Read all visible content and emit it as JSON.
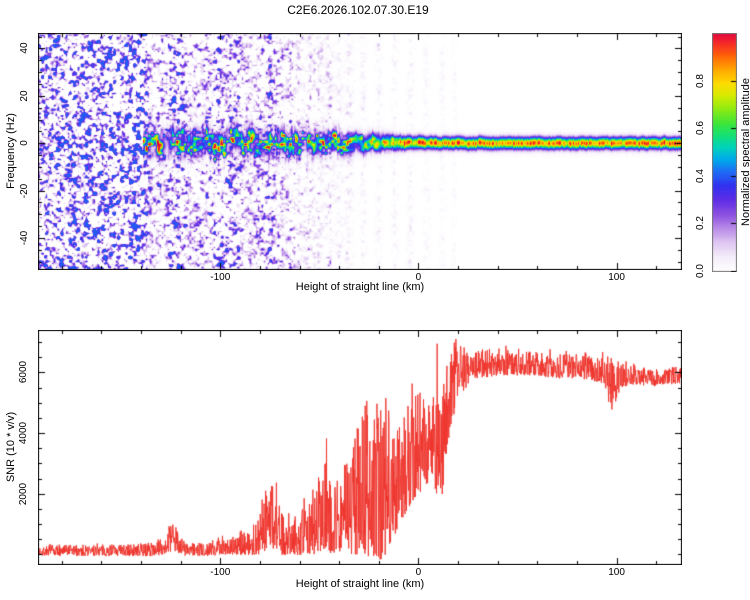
{
  "title": "C2E6.2026.102.07.30.E19",
  "colors": {
    "trace": "#ee332b",
    "axis": "#000000",
    "text": "#000000",
    "background": "#ffffff",
    "colorbar_border": "#777777"
  },
  "spectrogram_axes": {
    "xlabel": "Height of straight line (km)",
    "ylabel": "Frequency (Hz)",
    "x_range": [
      -192,
      133
    ],
    "y_range": [
      -53.5,
      46.5
    ],
    "x_tick_values": [
      -100,
      0,
      100
    ],
    "x_tick_labels": [
      "-100",
      "0",
      "100"
    ],
    "x_minor_step": 20,
    "y_tick_values": [
      -40,
      -20,
      0,
      20,
      40
    ],
    "y_tick_labels": [
      "-40",
      "-20",
      "0",
      "20",
      "40"
    ],
    "y_minor_step": 5
  },
  "colorbar": {
    "label": "Normalized spectral amplitude",
    "range": [
      0,
      1
    ],
    "tick_values": [
      0,
      0.2,
      0.4,
      0.6,
      0.8
    ],
    "tick_labels": [
      "0.0",
      "0.2",
      "0.4",
      "0.6",
      "0.8"
    ],
    "stops": [
      [
        0.0,
        "#ffffff"
      ],
      [
        0.06,
        "#f5eefa"
      ],
      [
        0.12,
        "#e0c8f2"
      ],
      [
        0.18,
        "#ba8ce8"
      ],
      [
        0.24,
        "#8c50e1"
      ],
      [
        0.3,
        "#5f2de6"
      ],
      [
        0.36,
        "#3232f0"
      ],
      [
        0.42,
        "#1e6ef5"
      ],
      [
        0.47,
        "#00aaeb"
      ],
      [
        0.52,
        "#00d2be"
      ],
      [
        0.57,
        "#14e178"
      ],
      [
        0.62,
        "#3ce63c"
      ],
      [
        0.68,
        "#8ceb14"
      ],
      [
        0.74,
        "#d7eb00"
      ],
      [
        0.79,
        "#ffdc00"
      ],
      [
        0.85,
        "#ffa500"
      ],
      [
        0.91,
        "#ff5f0a"
      ],
      [
        0.96,
        "#f52828"
      ],
      [
        1.0,
        "#e40a3c"
      ]
    ]
  },
  "snr_axes": {
    "xlabel": "Height of straight line (km)",
    "ylabel": "SNR (10 * v/v)",
    "x_range": [
      -192,
      133
    ],
    "y_range": [
      -350,
      7400
    ],
    "x_tick_values": [
      -100,
      0,
      100
    ],
    "x_tick_labels": [
      "-100",
      "0",
      "100"
    ],
    "x_minor_step": 20,
    "y_tick_values": [
      2000,
      4000,
      6000
    ],
    "y_tick_labels": [
      "2000",
      "4000",
      "6000"
    ],
    "y_minor_step": 500
  },
  "chart_data": [
    {
      "type": "heatmap",
      "title": "C2E6.2026.102.07.30.E19",
      "xlabel": "Height of straight line (km)",
      "ylabel": "Frequency (Hz)",
      "colorbar_label": "Normalized spectral amplitude",
      "x_range_km": [
        -192,
        133
      ],
      "y_range_hz": [
        -53.5,
        46.5
      ],
      "amplitude_range": [
        0,
        1
      ],
      "signal_line": {
        "description": "Narrow spectral line near 0 Hz; blobby wandering band from -139 to -30 km, tight red-cored flat line from -20 to 133 km",
        "start_km": -139,
        "profile_km": [
          -139,
          -95,
          -60,
          -30,
          -15,
          -5,
          10,
          133
        ],
        "sigma_hz": [
          3.8,
          3.6,
          3.5,
          2.6,
          2.1,
          1.8,
          1.7,
          1.7
        ],
        "amp_lo": [
          0.35,
          0.4,
          0.4,
          0.55,
          0.7,
          0.82,
          0.85,
          0.85
        ],
        "amp_hi": [
          0.8,
          0.85,
          0.85,
          0.95,
          1.0,
          1.0,
          1.0,
          1.0
        ],
        "wiggle_hz": [
          3.5,
          3.2,
          3.0,
          1.8,
          1.0,
          0.5,
          0.35,
          0.35
        ],
        "blobbiness": [
          1.0,
          1.0,
          1.0,
          0.7,
          0.3,
          0.1,
          0.0,
          0.0
        ]
      },
      "noise": {
        "description": "Dense purple speckle noise left of -138 km, vertical noise stripes fading toward 0 km",
        "dense_region_km": [
          -192,
          -138
        ],
        "amplitude_range": [
          0.05,
          0.4
        ],
        "stripes_km_amp_width": [
          [
            -131,
            0.55,
            2.0
          ],
          [
            -126,
            0.35,
            1.5
          ],
          [
            -122,
            0.8,
            2.5
          ],
          [
            -117,
            0.4,
            1.5
          ],
          [
            -112,
            0.55,
            2.0
          ],
          [
            -107,
            0.3,
            1.5
          ],
          [
            -102,
            0.7,
            3.0
          ],
          [
            -96,
            0.5,
            2.0
          ],
          [
            -91,
            0.6,
            2.0
          ],
          [
            -86,
            0.3,
            1.5
          ],
          [
            -81,
            0.45,
            2.0
          ],
          [
            -75,
            0.55,
            2.5
          ],
          [
            -70,
            0.3,
            1.5
          ],
          [
            -65,
            0.4,
            2.0
          ],
          [
            -60,
            0.22,
            1.5
          ],
          [
            -55,
            0.32,
            2.0
          ],
          [
            -50,
            0.2,
            1.5
          ],
          [
            -45,
            0.25,
            1.5
          ],
          [
            -40,
            0.15,
            1.2
          ],
          [
            -35,
            0.18,
            1.5
          ],
          [
            -28,
            0.12,
            1.0
          ],
          [
            -20,
            0.14,
            1.0
          ],
          [
            -12,
            0.1,
            1.0
          ],
          [
            -4,
            0.12,
            1.0
          ],
          [
            4,
            0.08,
            1.0
          ],
          [
            12,
            0.07,
            1.0
          ],
          [
            18,
            0.06,
            0.8
          ]
        ]
      }
    },
    {
      "type": "line",
      "xlabel": "Height of straight line (km)",
      "ylabel": "SNR (10 * v/v)",
      "color": "#ee332b",
      "x_range_km": [
        -192,
        133
      ],
      "y_range_shown": [
        0,
        7000
      ],
      "envelope_km_lo_hi": [
        [
          -192,
          -50,
          300
        ],
        [
          -170,
          -50,
          320
        ],
        [
          -150,
          -60,
          330
        ],
        [
          -135,
          -60,
          380
        ],
        [
          -128,
          0,
          600
        ],
        [
          -124,
          100,
          1050
        ],
        [
          -121,
          50,
          800
        ],
        [
          -118,
          -50,
          450
        ],
        [
          -112,
          -60,
          380
        ],
        [
          -105,
          -60,
          420
        ],
        [
          -99,
          0,
          700
        ],
        [
          -96,
          -30,
          500
        ],
        [
          -92,
          -50,
          600
        ],
        [
          -88,
          0,
          900
        ],
        [
          -84,
          -30,
          700
        ],
        [
          -80,
          0,
          1300
        ],
        [
          -77,
          100,
          2200
        ],
        [
          -74,
          150,
          2800
        ],
        [
          -71,
          0,
          1800
        ],
        [
          -68,
          -30,
          1200
        ],
        [
          -64,
          0,
          1500
        ],
        [
          -60,
          -30,
          1300
        ],
        [
          -56,
          0,
          1800
        ],
        [
          -52,
          0,
          2100
        ],
        [
          -49,
          100,
          2600
        ],
        [
          -46,
          100,
          3300
        ],
        [
          -43,
          0,
          2500
        ],
        [
          -40,
          0,
          2800
        ],
        [
          -37,
          100,
          3500
        ],
        [
          -34,
          0,
          3300
        ],
        [
          -31,
          0,
          4200
        ],
        [
          -28,
          -100,
          5900
        ],
        [
          -26,
          -200,
          5200
        ],
        [
          -23,
          -250,
          4600
        ],
        [
          -20,
          -250,
          5000
        ],
        [
          -17,
          -100,
          5200
        ],
        [
          -14,
          300,
          4700
        ],
        [
          -11,
          800,
          4300
        ],
        [
          -8,
          1200,
          4800
        ],
        [
          -5,
          1500,
          5000
        ],
        [
          -2,
          1800,
          5200
        ],
        [
          1,
          2000,
          5400
        ],
        [
          4,
          2300,
          5600
        ],
        [
          7,
          2500,
          5300
        ],
        [
          9,
          2000,
          6700
        ],
        [
          11,
          1300,
          5000
        ],
        [
          13,
          2600,
          6100
        ],
        [
          16,
          4000,
          6900
        ],
        [
          19,
          4800,
          7000
        ],
        [
          22,
          5300,
          6900
        ],
        [
          25,
          5600,
          6800
        ],
        [
          30,
          5800,
          6800
        ],
        [
          40,
          5900,
          6800
        ],
        [
          50,
          5900,
          6700
        ],
        [
          60,
          5900,
          6700
        ],
        [
          70,
          5800,
          6600
        ],
        [
          80,
          5800,
          6600
        ],
        [
          90,
          5700,
          6500
        ],
        [
          94,
          5600,
          6500
        ],
        [
          97,
          4700,
          6700
        ],
        [
          99,
          4900,
          6200
        ],
        [
          102,
          5500,
          6300
        ],
        [
          107,
          5600,
          6300
        ],
        [
          112,
          5600,
          6200
        ],
        [
          117,
          5500,
          6100
        ],
        [
          122,
          5600,
          6200
        ],
        [
          127,
          5600,
          6200
        ],
        [
          133,
          5650,
          6200
        ]
      ]
    }
  ]
}
